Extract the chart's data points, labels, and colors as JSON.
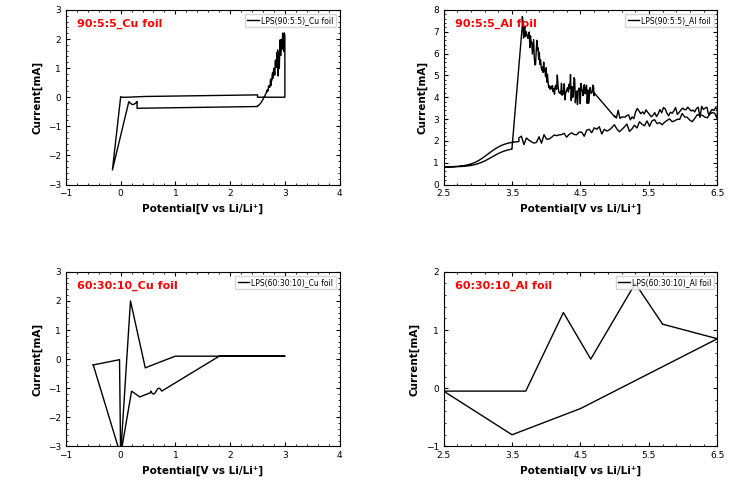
{
  "plots": [
    {
      "title_text": "90:5:5_Cu foil",
      "title_color": "red",
      "legend_label": "LPS(90:5:5)_Cu foil",
      "xlabel": "Potential[V vs Li/Li⁺]",
      "ylabel": "Current[mA]",
      "xlim": [
        -1,
        4
      ],
      "ylim": [
        -3,
        3
      ],
      "xticks": [
        -1,
        0,
        1,
        2,
        3,
        4
      ],
      "yticks": [
        -3,
        -2,
        -1,
        0,
        1,
        2,
        3
      ],
      "curve": "cu_foil_90"
    },
    {
      "title_text": "90:5:5_Al foil",
      "title_color": "red",
      "legend_label": "LPS(90:5:5)_Al foil",
      "xlabel": "Potential[V vs Li/Li⁺]",
      "ylabel": "Current[mA]",
      "xlim": [
        2.5,
        6.5
      ],
      "ylim": [
        0,
        8
      ],
      "xticks": [
        2.5,
        3.5,
        4.5,
        5.5,
        6.5
      ],
      "yticks": [
        0,
        1,
        2,
        3,
        4,
        5,
        6,
        7,
        8
      ],
      "curve": "al_foil_90"
    },
    {
      "title_text": "60:30:10_Cu foil",
      "title_color": "red",
      "legend_label": "LPS(60:30:10)_Cu foil",
      "xlabel": "Potential[V vs Li/Li⁺]",
      "ylabel": "Current[mA]",
      "xlim": [
        -1,
        4
      ],
      "ylim": [
        -3,
        3
      ],
      "xticks": [
        -1,
        0,
        1,
        2,
        3,
        4
      ],
      "yticks": [
        -3,
        -2,
        -1,
        0,
        1,
        2,
        3
      ],
      "curve": "cu_foil_60"
    },
    {
      "title_text": "60:30:10_Al foil",
      "title_color": "red",
      "legend_label": "LPS(60:30:10)_Al foil",
      "xlabel": "Potential[V vs Li/Li⁺]",
      "ylabel": "Current[mA]",
      "xlim": [
        2.5,
        6.5
      ],
      "ylim": [
        -1,
        2
      ],
      "xticks": [
        2.5,
        3.5,
        4.5,
        5.5,
        6.5
      ],
      "yticks": [
        -1,
        0,
        1,
        2
      ],
      "curve": "al_foil_60"
    }
  ],
  "line_color": "black",
  "line_width": 1.0
}
